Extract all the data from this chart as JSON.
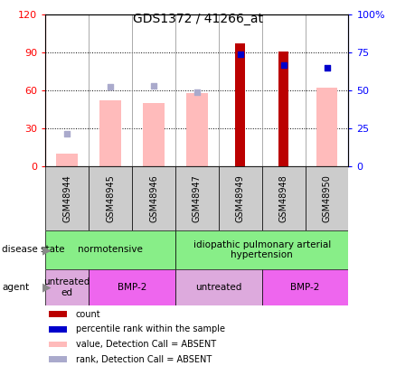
{
  "title": "GDS1372 / 41266_at",
  "samples": [
    "GSM48944",
    "GSM48945",
    "GSM48946",
    "GSM48947",
    "GSM48949",
    "GSM48948",
    "GSM48950"
  ],
  "count_values": [
    null,
    null,
    null,
    null,
    97,
    91,
    null
  ],
  "count_color": "#bb0000",
  "value_absent": [
    10,
    52,
    50,
    58,
    null,
    null,
    62
  ],
  "value_absent_color": "#ffbbbb",
  "rank_absent": [
    26,
    63,
    64,
    59,
    null,
    null,
    null
  ],
  "rank_absent_color": "#aaaacc",
  "percentile_present": [
    null,
    null,
    null,
    null,
    74,
    67,
    65
  ],
  "percentile_color": "#0000cc",
  "ylim_left": [
    0,
    120
  ],
  "ylim_right": [
    0,
    100
  ],
  "yticks_left": [
    0,
    30,
    60,
    90,
    120
  ],
  "yticks_right": [
    0,
    25,
    50,
    75,
    100
  ],
  "ytick_labels_left": [
    "0",
    "30",
    "60",
    "90",
    "120"
  ],
  "ytick_labels_right": [
    "0",
    "25",
    "50",
    "75",
    "100%"
  ],
  "disease_state_groups": [
    {
      "label": "normotensive",
      "start": 0,
      "end": 3,
      "color": "#88ee88"
    },
    {
      "label": "idiopathic pulmonary arterial\nhypertension",
      "start": 3,
      "end": 7,
      "color": "#88ee88"
    }
  ],
  "agent_groups": [
    {
      "label": "untreated\ned",
      "start": 0,
      "end": 1,
      "color": "#ddaadd"
    },
    {
      "label": "BMP-2",
      "start": 1,
      "end": 3,
      "color": "#ee66ee"
    },
    {
      "label": "untreated",
      "start": 3,
      "end": 5,
      "color": "#ddaadd"
    },
    {
      "label": "BMP-2",
      "start": 5,
      "end": 7,
      "color": "#ee66ee"
    }
  ],
  "legend_items": [
    {
      "label": "count",
      "color": "#bb0000"
    },
    {
      "label": "percentile rank within the sample",
      "color": "#0000cc"
    },
    {
      "label": "value, Detection Call = ABSENT",
      "color": "#ffbbbb"
    },
    {
      "label": "rank, Detection Call = ABSENT",
      "color": "#aaaacc"
    }
  ],
  "sample_header_color": "#cccccc",
  "bar_width": 0.5
}
